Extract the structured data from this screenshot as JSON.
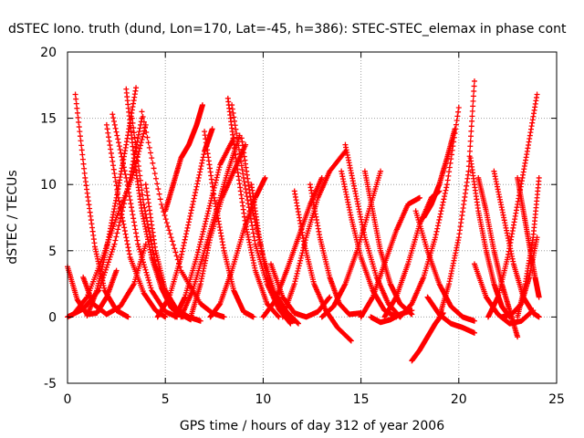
{
  "chart_data": {
    "type": "scatter",
    "title": "dSTEC Iono. truth (dund, Lon=170, Lat=-45, h=386): STEC-STEC_elemax in phase cont",
    "xlabel": "GPS time / hours of day 312 of year 2006",
    "ylabel": "dSTEC  / TECUs",
    "xlim": [
      0,
      25
    ],
    "ylim": [
      -5,
      20
    ],
    "xticks": [
      "0",
      "5",
      "10",
      "15",
      "20",
      "25"
    ],
    "yticks": [
      "-5",
      "0",
      "5",
      "10",
      "15",
      "20"
    ],
    "grid": true,
    "marker": "+",
    "color": "#ff0000",
    "series": [
      {
        "x": [
          0.0,
          0.5,
          1.0,
          1.5,
          2.0,
          2.5
        ],
        "y": [
          3.8,
          1.3,
          0.2,
          0.3,
          1.5,
          3.5
        ]
      },
      {
        "x": [
          0.0,
          0.8,
          1.6,
          2.4,
          3.2,
          3.8
        ],
        "y": [
          0.0,
          0.6,
          2.0,
          5.5,
          10.5,
          15.0
        ]
      },
      {
        "x": [
          0.4,
          0.9,
          1.4,
          1.9,
          2.5,
          3.1
        ],
        "y": [
          16.8,
          10.5,
          5.3,
          2.0,
          0.5,
          0.0
        ]
      },
      {
        "x": [
          0.3,
          1.0,
          1.8,
          2.5,
          3.3,
          4.0
        ],
        "y": [
          0.2,
          1.5,
          4.5,
          7.5,
          10.5,
          14.5
        ]
      },
      {
        "x": [
          0.8,
          1.3,
          2.0,
          2.7,
          3.4,
          4.0
        ],
        "y": [
          3.0,
          1.0,
          0.2,
          0.8,
          2.5,
          5.5
        ]
      },
      {
        "x": [
          1.0,
          1.5,
          2.0,
          2.5,
          3.0,
          3.5
        ],
        "y": [
          0.1,
          2.0,
          5.2,
          9.0,
          13.0,
          17.3
        ]
      },
      {
        "x": [
          2.0,
          2.6,
          3.2,
          3.9,
          4.5,
          5.0
        ],
        "y": [
          14.5,
          9.0,
          4.5,
          1.8,
          0.5,
          0.0
        ]
      },
      {
        "x": [
          2.3,
          3.0,
          3.6,
          4.3,
          5.0,
          5.6
        ],
        "y": [
          15.3,
          10.5,
          5.5,
          2.0,
          0.4,
          0.0
        ]
      },
      {
        "x": [
          3.0,
          3.4,
          3.8,
          4.3,
          4.8,
          5.3,
          5.9
        ],
        "y": [
          17.2,
          12.0,
          8.0,
          4.5,
          2.2,
          0.7,
          0.0
        ]
      },
      {
        "x": [
          3.3,
          3.9,
          4.5,
          5.1,
          5.8,
          6.3
        ],
        "y": [
          15.0,
          8.5,
          4.0,
          1.5,
          0.2,
          -0.2
        ]
      },
      {
        "x": [
          4.0,
          4.5,
          5.0,
          5.6,
          6.2,
          6.8
        ],
        "y": [
          10.0,
          5.0,
          2.0,
          0.5,
          0.0,
          -0.3
        ]
      },
      {
        "x": [
          3.8,
          4.8,
          5.8,
          6.8,
          7.4,
          8.0
        ],
        "y": [
          15.5,
          8.5,
          3.5,
          1.0,
          0.3,
          0.0
        ]
      },
      {
        "x": [
          4.6,
          5.2,
          5.8,
          6.4,
          7.0,
          7.4
        ],
        "y": [
          0.0,
          1.5,
          4.5,
          8.5,
          12.5,
          14.2
        ]
      },
      {
        "x": [
          5.0,
          5.4,
          5.8,
          6.2,
          6.6,
          6.9
        ],
        "y": [
          8.0,
          10.0,
          12.0,
          13.0,
          14.5,
          16.0
        ]
      },
      {
        "x": [
          5.5,
          6.0,
          6.6,
          7.2,
          7.8,
          8.5
        ],
        "y": [
          0.0,
          1.5,
          4.5,
          8.0,
          11.5,
          13.5
        ]
      },
      {
        "x": [
          5.8,
          6.4,
          7.0,
          7.6,
          8.2,
          8.8
        ],
        "y": [
          0.0,
          2.0,
          5.0,
          8.0,
          11.0,
          13.7
        ]
      },
      {
        "x": [
          6.3,
          6.8,
          7.3,
          7.9,
          8.5,
          9.1
        ],
        "y": [
          0.0,
          2.5,
          6.0,
          9.0,
          11.0,
          13.0
        ]
      },
      {
        "x": [
          7.0,
          7.5,
          8.0,
          8.5,
          9.0,
          9.5
        ],
        "y": [
          14.0,
          9.0,
          5.0,
          2.0,
          0.4,
          0.0
        ]
      },
      {
        "x": [
          7.3,
          7.8,
          8.4,
          9.0,
          9.6,
          10.1
        ],
        "y": [
          0.0,
          1.0,
          3.5,
          6.5,
          9.0,
          10.5
        ]
      },
      {
        "x": [
          8.2,
          8.6,
          9.1,
          9.6,
          10.2,
          10.8
        ],
        "y": [
          16.5,
          12.0,
          7.0,
          3.5,
          1.0,
          0.0
        ]
      },
      {
        "x": [
          8.4,
          9.0,
          9.6,
          10.2,
          10.8,
          11.4
        ],
        "y": [
          16.0,
          10.5,
          5.5,
          2.5,
          0.6,
          -0.5
        ]
      },
      {
        "x": [
          8.9,
          9.4,
          10.0,
          10.6,
          11.2,
          11.8
        ],
        "y": [
          13.5,
          8.5,
          4.5,
          1.8,
          0.4,
          -0.5
        ]
      },
      {
        "x": [
          9.4,
          9.8,
          10.2,
          10.7,
          11.2,
          11.6
        ],
        "y": [
          10.0,
          6.0,
          3.0,
          1.0,
          0.0,
          -0.3
        ]
      },
      {
        "x": [
          10.0,
          10.6,
          11.2,
          11.8,
          12.4,
          13.0
        ],
        "y": [
          0.0,
          1.2,
          3.5,
          6.0,
          8.5,
          10.5
        ]
      },
      {
        "x": [
          10.4,
          11.0,
          11.6,
          12.2,
          12.8,
          13.4
        ],
        "y": [
          4.0,
          1.5,
          0.3,
          0.0,
          0.4,
          1.5
        ]
      },
      {
        "x": [
          11.0,
          11.6,
          12.2,
          12.8,
          13.4,
          14.2
        ],
        "y": [
          0.0,
          2.5,
          6.0,
          9.0,
          11.0,
          12.5
        ]
      },
      {
        "x": [
          11.6,
          12.1,
          12.6,
          13.2,
          13.8,
          14.5
        ],
        "y": [
          9.5,
          5.5,
          2.5,
          0.5,
          -0.8,
          -1.8
        ]
      },
      {
        "x": [
          12.4,
          12.9,
          13.4,
          13.9,
          14.4,
          15.0
        ],
        "y": [
          10.0,
          6.0,
          3.0,
          1.0,
          0.2,
          0.3
        ]
      },
      {
        "x": [
          13.0,
          13.6,
          14.2,
          14.8,
          15.4,
          16.0
        ],
        "y": [
          0.0,
          0.8,
          2.5,
          5.0,
          8.0,
          11.0
        ]
      },
      {
        "x": [
          14.0,
          14.5,
          15.0,
          15.6,
          16.2,
          16.8
        ],
        "y": [
          11.0,
          7.5,
          4.5,
          2.0,
          0.5,
          0.0
        ]
      },
      {
        "x": [
          14.2,
          14.7,
          15.2,
          15.8,
          16.4,
          17.0
        ],
        "y": [
          13.0,
          9.5,
          6.0,
          3.0,
          1.0,
          0.0
        ]
      },
      {
        "x": [
          15.0,
          15.6,
          16.2,
          16.8,
          17.4,
          18.0
        ],
        "y": [
          0.0,
          1.5,
          4.0,
          6.5,
          8.5,
          9.0
        ]
      },
      {
        "x": [
          15.2,
          15.6,
          16.0,
          16.5,
          17.0,
          17.6
        ],
        "y": [
          11.0,
          8.0,
          5.0,
          2.5,
          1.0,
          0.2
        ]
      },
      {
        "x": [
          15.5,
          16.0,
          16.5,
          17.0,
          17.6
        ],
        "y": [
          0.0,
          -0.4,
          -0.2,
          0.2,
          0.5
        ]
      },
      {
        "x": [
          16.2,
          16.8,
          17.4,
          18.0,
          18.6,
          19.0
        ],
        "y": [
          0.0,
          1.5,
          4.0,
          7.0,
          9.0,
          9.5
        ]
      },
      {
        "x": [
          17.6,
          18.0,
          18.4,
          18.8,
          19.2
        ],
        "y": [
          -3.3,
          -2.5,
          -1.5,
          -0.5,
          0.3
        ]
      },
      {
        "x": [
          17.0,
          17.6,
          18.2,
          18.8,
          19.4,
          20.0
        ],
        "y": [
          0.0,
          1.0,
          3.0,
          6.0,
          10.0,
          15.8
        ]
      },
      {
        "x": [
          17.8,
          18.4,
          19.0,
          19.6,
          20.2,
          20.8
        ],
        "y": [
          8.0,
          5.0,
          2.5,
          0.8,
          0.0,
          -0.3
        ]
      },
      {
        "x": [
          18.2,
          18.6,
          19.0,
          19.4,
          19.8
        ],
        "y": [
          7.5,
          8.5,
          10.0,
          12.0,
          14.2
        ]
      },
      {
        "x": [
          18.4,
          19.0,
          19.6,
          20.2,
          20.8
        ],
        "y": [
          1.5,
          0.2,
          -0.5,
          -0.8,
          -1.2
        ]
      },
      {
        "x": [
          19.0,
          19.5,
          20.0,
          20.5,
          20.8
        ],
        "y": [
          0.0,
          2.5,
          6.0,
          11.0,
          17.8
        ]
      },
      {
        "x": [
          20.6,
          21.0,
          21.4,
          21.8,
          22.2,
          22.6
        ],
        "y": [
          12.0,
          8.0,
          5.0,
          2.5,
          0.8,
          0.0
        ]
      },
      {
        "x": [
          20.8,
          21.4,
          22.0,
          22.6,
          23.2,
          23.8
        ],
        "y": [
          4.0,
          1.5,
          0.2,
          -0.5,
          -0.3,
          0.5
        ]
      },
      {
        "x": [
          21.0,
          21.4,
          21.8,
          22.2,
          22.6,
          23.0
        ],
        "y": [
          10.5,
          8.0,
          5.0,
          2.5,
          0.5,
          -1.5
        ]
      },
      {
        "x": [
          21.5,
          22.0,
          22.5,
          23.0,
          23.5,
          24.0
        ],
        "y": [
          0.0,
          1.5,
          4.5,
          8.5,
          12.5,
          16.8
        ]
      },
      {
        "x": [
          21.8,
          22.3,
          22.8,
          23.3,
          23.8,
          24.1
        ],
        "y": [
          11.0,
          7.5,
          4.0,
          1.5,
          0.3,
          0.0
        ]
      },
      {
        "x": [
          22.2,
          22.7,
          23.2,
          23.6,
          24.0
        ],
        "y": [
          0.0,
          0.2,
          1.0,
          3.0,
          6.0
        ]
      },
      {
        "x": [
          23.0,
          23.3,
          23.6,
          23.9,
          24.1
        ],
        "y": [
          10.5,
          8.0,
          5.5,
          3.0,
          1.5
        ]
      },
      {
        "x": [
          23.0,
          23.4,
          23.8,
          24.1
        ],
        "y": [
          0.0,
          2.5,
          6.0,
          10.5
        ]
      }
    ]
  }
}
